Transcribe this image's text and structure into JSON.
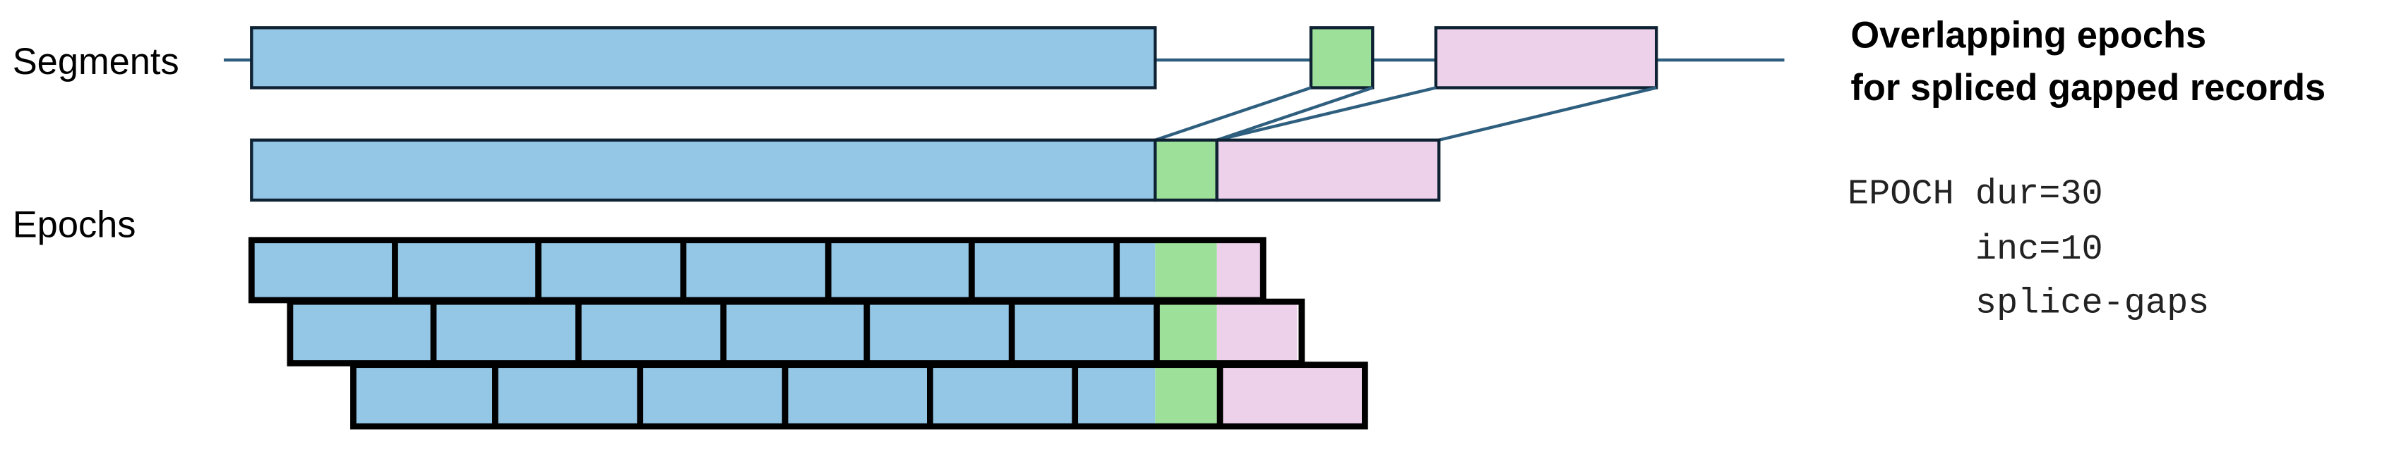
{
  "labels": {
    "segments": "Segments",
    "epochs": "Epochs"
  },
  "title": {
    "line1": "Overlapping epochs",
    "line2": "for spliced gapped records"
  },
  "command": {
    "line1": "EPOCH dur=30",
    "line2": "      inc=10",
    "line3": "      splice-gaps"
  },
  "colors": {
    "segment_a": "#94c7e6",
    "segment_b": "#9ce09a",
    "segment_c": "#edd0ea",
    "outline": "#0f2233",
    "timeline": "#2f5f7f"
  }
}
